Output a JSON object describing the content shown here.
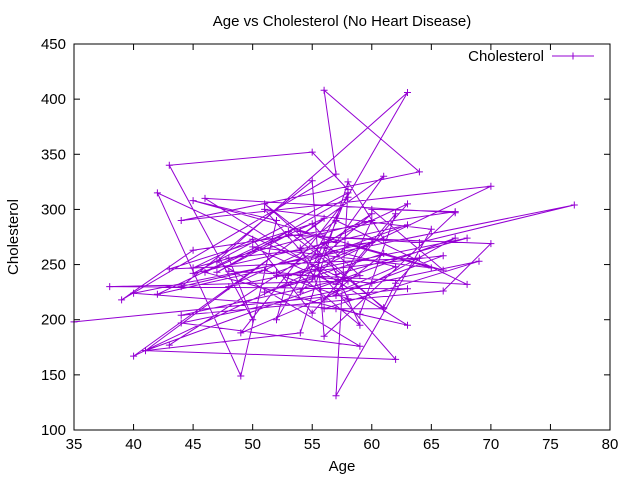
{
  "chart_data": {
    "type": "line",
    "title": "Age vs Cholesterol (No Heart Disease)",
    "xlabel": "Age",
    "ylabel": "Cholesterol",
    "xlim": [
      35,
      80
    ],
    "ylim": [
      100,
      450
    ],
    "xticks": [
      "35",
      "40",
      "45",
      "50",
      "55",
      "60",
      "65",
      "70",
      "75",
      "80"
    ],
    "yticks": [
      "100",
      "150",
      "200",
      "250",
      "300",
      "350",
      "400",
      "450"
    ],
    "grid": false,
    "legend": "top-right",
    "colors": {
      "series": "#9400d3",
      "axis": "#000000"
    },
    "series": [
      {
        "name": "Cholesterol",
        "marker": "plus",
        "x": [
          35,
          63,
          38,
          58,
          42,
          49,
          52,
          45,
          66,
          60,
          67,
          45,
          39,
          57,
          56,
          64,
          44,
          70,
          40,
          61,
          57,
          54,
          51,
          61,
          56,
          69,
          44,
          59,
          47,
          63,
          52,
          53,
          60,
          48,
          50,
          43,
          55,
          58,
          57,
          65,
          51,
          62,
          41,
          54,
          58,
          61,
          44,
          55,
          56,
          67,
          46,
          63,
          57,
          40,
          77,
          64,
          53,
          47,
          58,
          49,
          62,
          56,
          59,
          54,
          60,
          43,
          52,
          66,
          57,
          60,
          45,
          50,
          55,
          63,
          48,
          68,
          57,
          58,
          51,
          42,
          53,
          61,
          62,
          64,
          43,
          55,
          56,
          70,
          66,
          44,
          59,
          56,
          54,
          58,
          65,
          50,
          57,
          62,
          59,
          46,
          56,
          41,
          67,
          60,
          52,
          63,
          45,
          58,
          55,
          51,
          61,
          56,
          54,
          57,
          68,
          48
        ],
        "y": [
          198,
          228,
          230,
          235,
          315,
          149,
          290,
          308,
          245,
          300,
          298,
          263,
          218,
          332,
          408,
          334,
          290,
          321,
          167,
          330,
          270,
          280,
          305,
          210,
          210,
          253,
          197,
          176,
          253,
          406,
          200,
          240,
          270,
          256,
          200,
          340,
          352,
          318,
          131,
          282,
          300,
          164,
          172,
          188,
          325,
          273,
          230,
          326,
          185,
          297,
          310,
          195,
          210,
          224,
          304,
          270,
          277,
          243,
          311,
          188,
          248,
          265,
          195,
          240,
          296,
          177,
          240,
          258,
          222,
          290,
          247,
          273,
          206,
          305,
          230,
          274,
          241,
          219,
          245,
          223,
          280,
          211,
          233,
          256,
          246,
          287,
          275,
          269,
          226,
          204,
          240,
          270,
          225,
          268,
          247,
          266,
          232,
          296,
          205,
          243,
          292,
          172,
          274,
          233,
          243,
          286,
          242,
          315,
          237,
          225,
          260,
          218,
          265,
          290,
          232,
          244
        ]
      }
    ]
  }
}
